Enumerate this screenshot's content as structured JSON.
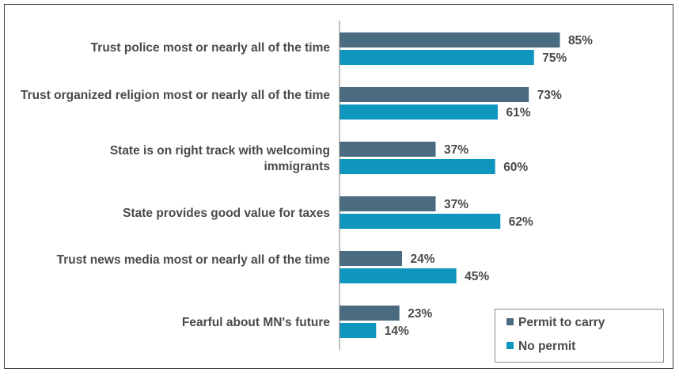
{
  "chart_data": {
    "type": "bar",
    "orientation": "horizontal",
    "categories": [
      "Trust police most or nearly all of the time",
      "Trust organized religion most or nearly all of the time",
      "State is on right track with welcoming immigrants",
      "State provides good value for taxes",
      "Trust news media most or nearly all of the time",
      "Fearful about MN's future"
    ],
    "series": [
      {
        "name": "Permit to carry",
        "color": "#4a6b80",
        "values": [
          85,
          73,
          37,
          37,
          24,
          23
        ]
      },
      {
        "name": "No permit",
        "color": "#0e96bf",
        "values": [
          75,
          61,
          60,
          62,
          45,
          14
        ]
      }
    ],
    "value_suffix": "%",
    "xlim": [
      0,
      100
    ],
    "grid": false,
    "legend_position": "bottom-right",
    "title": "",
    "xlabel": "",
    "ylabel": ""
  }
}
